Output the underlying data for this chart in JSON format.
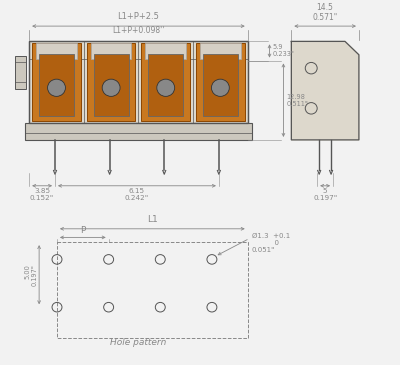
{
  "bg_color": "#f2f2f2",
  "line_color": "#555555",
  "dim_color": "#888888",
  "orange_color": "#cc7722",
  "fig_width": 4.0,
  "fig_height": 3.65,
  "dpi": 100,
  "annotations": {
    "top_dim1": "L1+P+2.5",
    "top_dim2": "L1+P+0.098''",
    "right_dim_top": "14.5\n0.571\"",
    "right_side_5_9": "5.9\n0.233\"",
    "right_side_12_98": "12.98\n0.511\"",
    "bottom_dim1": "3.85\n0.152\"",
    "bottom_dim2": "6.15\n0.242\"",
    "bottom_right": "5\n0.197\"",
    "hole_L1": "L1",
    "hole_P": "P",
    "hole_dim": "Ø1.3  +0.1\n          0\n0.051\"",
    "hole_label_v": "5.00\n0.197\"",
    "hole_pattern": "Hole pattern"
  }
}
